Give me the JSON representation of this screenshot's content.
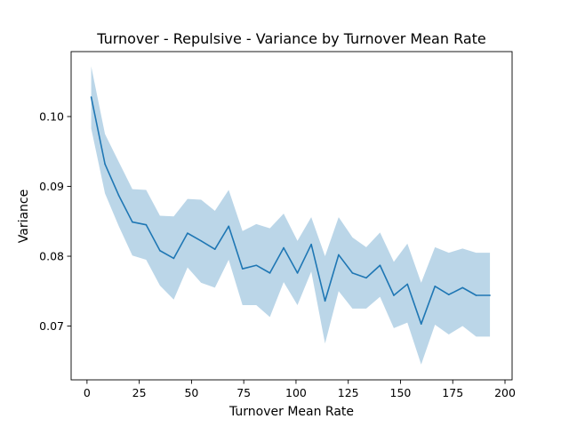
{
  "chart_data": {
    "type": "line",
    "title": "Turnover - Repulsive - Variance by Turnover Mean Rate",
    "xlabel": "Turnover Mean Rate",
    "ylabel": "Variance",
    "xlim": [
      -7.6,
      203.4
    ],
    "ylim": [
      0.0623,
      0.1093
    ],
    "xticks": [
      0,
      25,
      50,
      75,
      100,
      125,
      150,
      175,
      200
    ],
    "xtick_labels": [
      "0",
      "25",
      "50",
      "75",
      "100",
      "125",
      "150",
      "175",
      "200"
    ],
    "yticks": [
      0.07,
      0.08,
      0.09,
      0.1
    ],
    "ytick_labels": [
      "0.07",
      "0.08",
      "0.09",
      "0.10"
    ],
    "grid": false,
    "legend": null,
    "series": [
      {
        "color": "#1f77b4",
        "band_color": "#1f77b4",
        "band_opacity": 0.3,
        "x": [
          2,
          8.6,
          15.2,
          21.7,
          28.3,
          34.9,
          41.5,
          48.1,
          54.6,
          61.2,
          67.8,
          74.4,
          81.0,
          87.5,
          94.1,
          100.7,
          107.3,
          113.9,
          120.4,
          127.0,
          133.6,
          140.2,
          146.8,
          153.3,
          159.9,
          166.5,
          173.1,
          179.7,
          186.2,
          192.8
        ],
        "values": [
          0.1028,
          0.0932,
          0.0887,
          0.0849,
          0.0845,
          0.0808,
          0.0797,
          0.0833,
          0.0822,
          0.081,
          0.0843,
          0.0782,
          0.0787,
          0.0776,
          0.0812,
          0.0776,
          0.0817,
          0.0736,
          0.0802,
          0.0776,
          0.0769,
          0.0787,
          0.0744,
          0.076,
          0.0703,
          0.0757,
          0.0745,
          0.0755,
          0.0744,
          0.0744
        ],
        "lower": [
          0.0983,
          0.089,
          0.0843,
          0.0801,
          0.0795,
          0.0758,
          0.0738,
          0.0784,
          0.0762,
          0.0755,
          0.0795,
          0.073,
          0.073,
          0.0713,
          0.0763,
          0.073,
          0.0778,
          0.0675,
          0.075,
          0.0725,
          0.0725,
          0.0742,
          0.0697,
          0.0705,
          0.0645,
          0.0702,
          0.0688,
          0.07,
          0.0685,
          0.0685
        ],
        "upper": [
          0.1072,
          0.0975,
          0.0935,
          0.0896,
          0.0895,
          0.0858,
          0.0857,
          0.0882,
          0.0881,
          0.0865,
          0.0895,
          0.0836,
          0.0846,
          0.084,
          0.0861,
          0.0822,
          0.0856,
          0.08,
          0.0856,
          0.0827,
          0.0813,
          0.0834,
          0.0792,
          0.0818,
          0.0762,
          0.0813,
          0.0805,
          0.0811,
          0.0805,
          0.0805
        ]
      }
    ]
  }
}
